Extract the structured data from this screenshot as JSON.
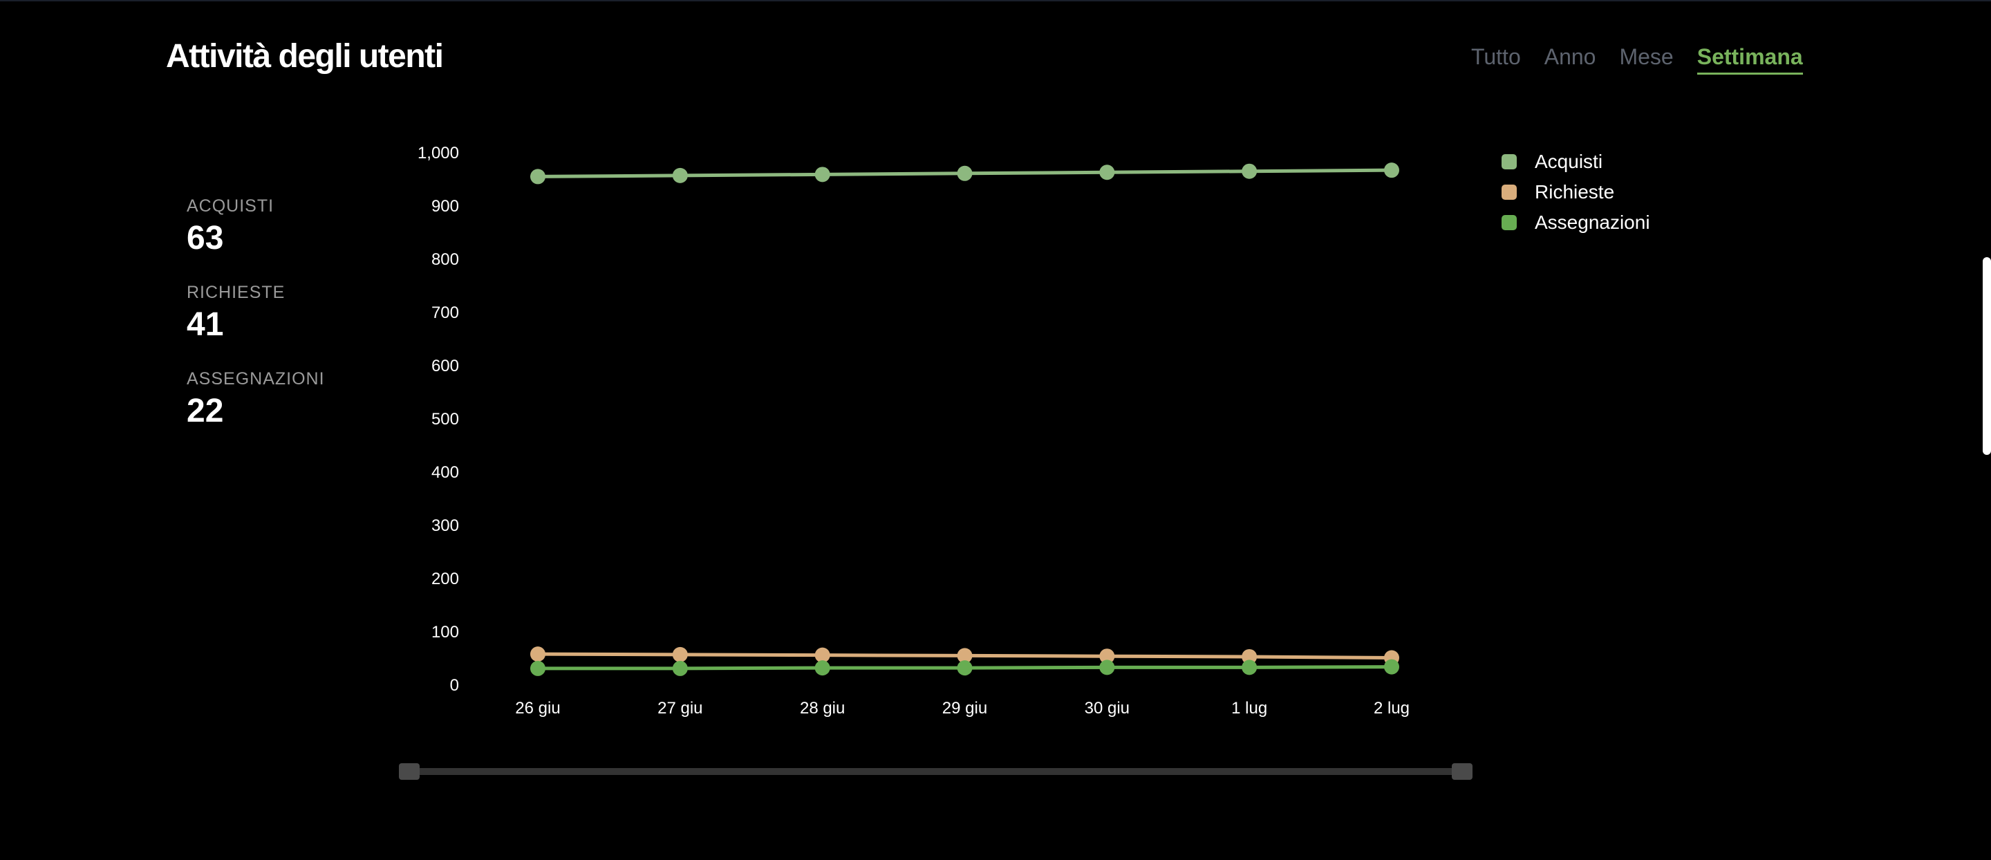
{
  "header": {
    "title": "Attività degli utenti"
  },
  "tabs": [
    {
      "label": "Tutto",
      "active": false
    },
    {
      "label": "Anno",
      "active": false
    },
    {
      "label": "Mese",
      "active": false
    },
    {
      "label": "Settimana",
      "active": true
    }
  ],
  "stats": [
    {
      "label": "ACQUISTI",
      "value": "63"
    },
    {
      "label": "RICHIESTE",
      "value": "41"
    },
    {
      "label": "ASSEGNAZIONI",
      "value": "22"
    }
  ],
  "legend": [
    {
      "label": "Acquisti",
      "color": "#8db87f"
    },
    {
      "label": "Richieste",
      "color": "#d9ad7c"
    },
    {
      "label": "Assegnazioni",
      "color": "#67ad52"
    }
  ],
  "range_slider": {
    "start": 0,
    "end": 1
  },
  "chart_data": {
    "type": "line",
    "categories": [
      "26 giu",
      "27 giu",
      "28 giu",
      "29 giu",
      "30 giu",
      "1 lug",
      "2 lug"
    ],
    "ylim": [
      0,
      1000
    ],
    "yticks": [
      0,
      100,
      200,
      300,
      400,
      500,
      600,
      700,
      800,
      900,
      1000
    ],
    "ytick_labels": [
      "0",
      "100",
      "200",
      "300",
      "400",
      "500",
      "600",
      "700",
      "800",
      "900",
      "1,000"
    ],
    "grid": false,
    "legend_position": "top-right",
    "series": [
      {
        "name": "Acquisti",
        "color": "#8db87f",
        "values": [
          954,
          956,
          958,
          960,
          962,
          964,
          966
        ]
      },
      {
        "name": "Richieste",
        "color": "#d9ad7c",
        "values": [
          57,
          56,
          55,
          54,
          53,
          52,
          50
        ]
      },
      {
        "name": "Assegnazioni",
        "color": "#67ad52",
        "values": [
          30,
          30,
          31,
          31,
          32,
          32,
          33
        ]
      }
    ]
  }
}
